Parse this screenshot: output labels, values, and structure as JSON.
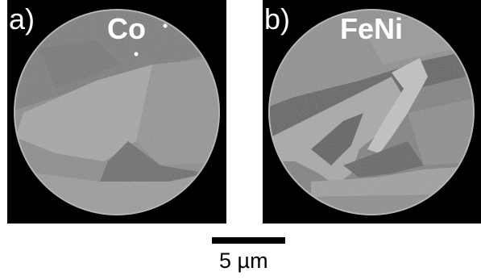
{
  "panels": [
    {
      "letter": "a)",
      "material": "Co"
    },
    {
      "letter": "b)",
      "material": "FeNi"
    }
  ],
  "scale_bar": {
    "label": "5 µm"
  }
}
